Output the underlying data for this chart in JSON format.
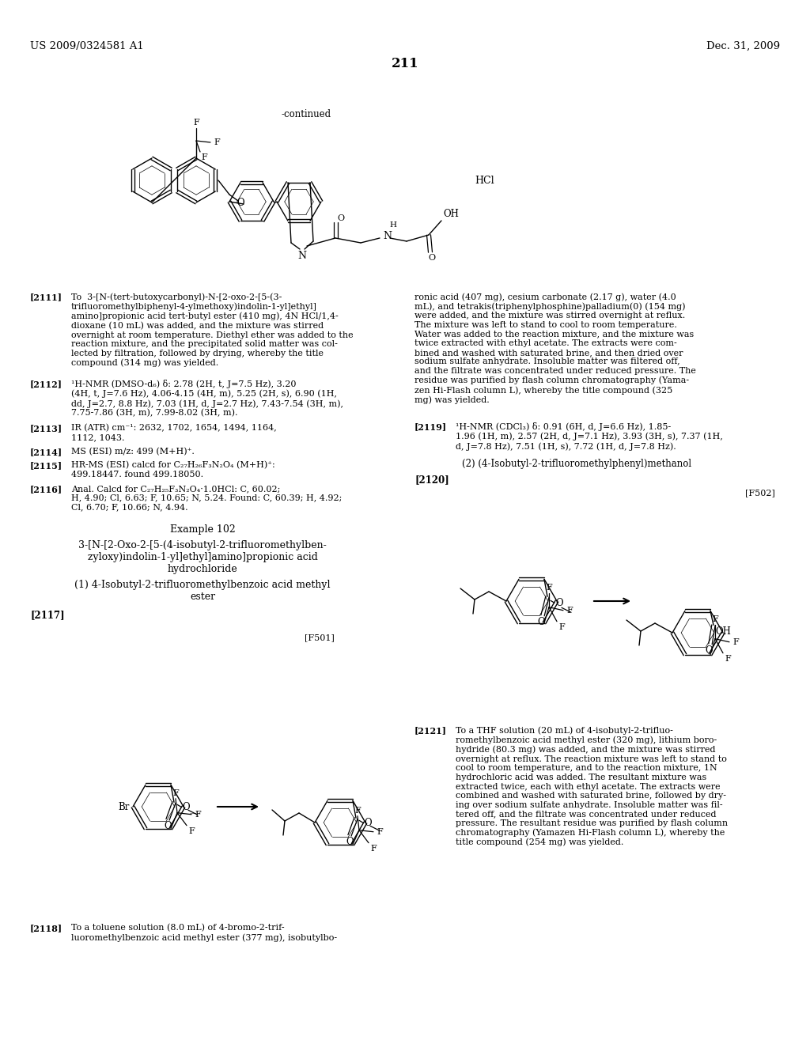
{
  "page_number": "211",
  "header_left": "US 2009/0324581 A1",
  "header_right": "Dec. 31, 2009",
  "background_color": "#ffffff",
  "text_color": "#000000"
}
